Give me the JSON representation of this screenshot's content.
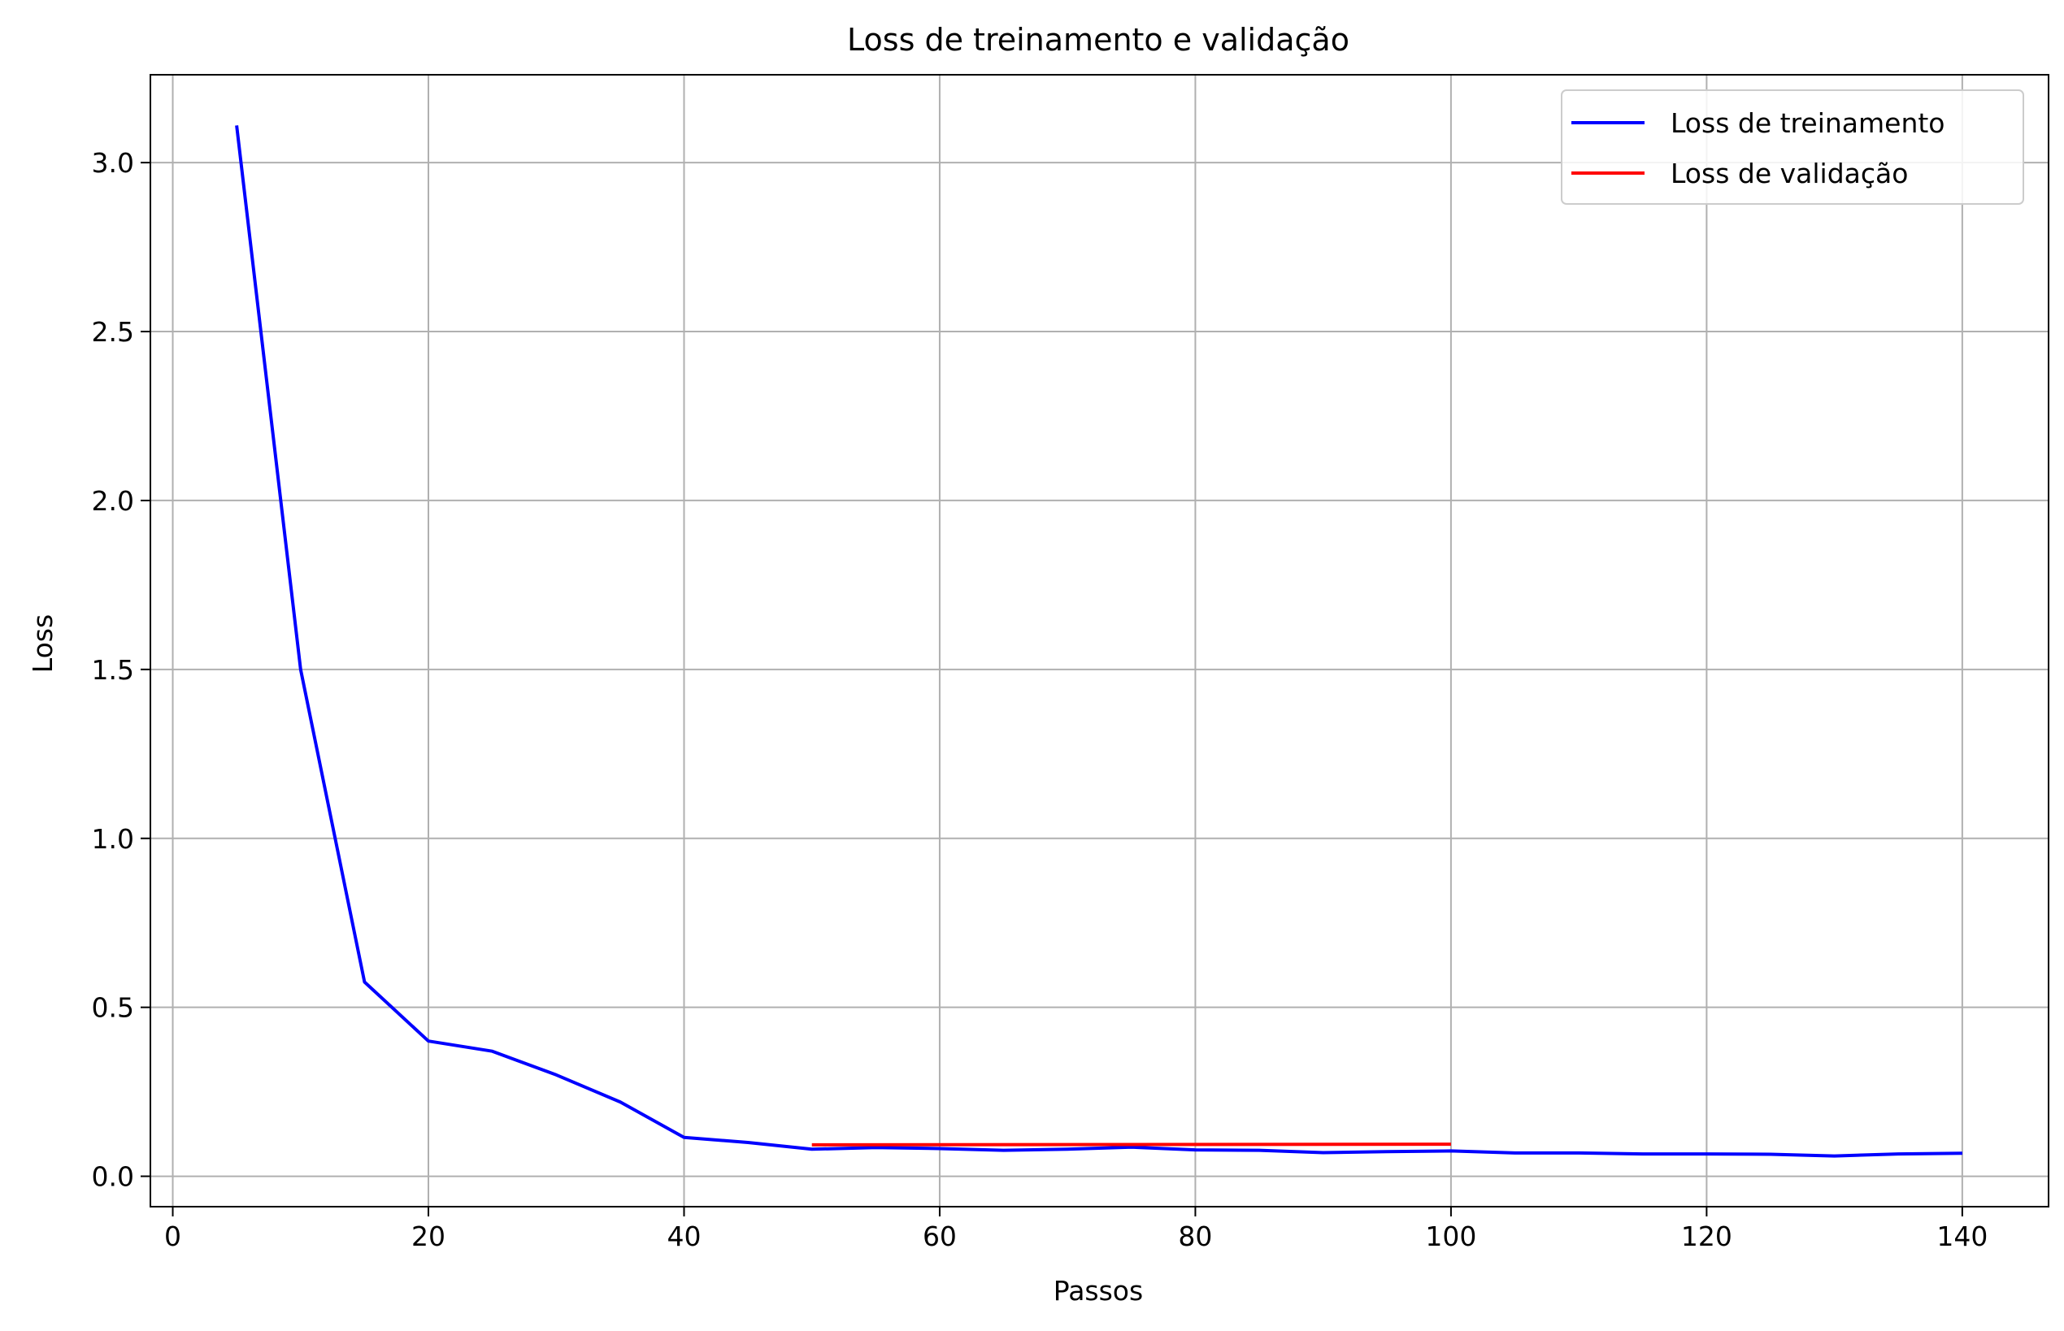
{
  "chart_data": {
    "type": "line",
    "title": "Loss de treinamento e validação",
    "xlabel": "Passos",
    "ylabel": "Loss",
    "xlim": [
      -1.75,
      146.75
    ],
    "ylim": [
      -0.09,
      3.26
    ],
    "xticks": [
      0,
      20,
      40,
      60,
      80,
      100,
      120,
      140
    ],
    "xtick_labels": [
      "0",
      "20",
      "40",
      "60",
      "80",
      "100",
      "120",
      "140"
    ],
    "yticks": [
      0.0,
      0.5,
      1.0,
      1.5,
      2.0,
      2.5,
      3.0
    ],
    "ytick_labels": [
      "0.0",
      "0.5",
      "1.0",
      "1.5",
      "2.0",
      "2.5",
      "3.0"
    ],
    "grid": true,
    "legend_position": "top-right",
    "series": [
      {
        "name": "Loss de treinamento",
        "color": "#0000ff",
        "x": [
          5,
          10,
          15,
          20,
          25,
          30,
          35,
          40,
          45,
          50,
          55,
          60,
          65,
          70,
          75,
          80,
          85,
          90,
          95,
          100,
          105,
          110,
          115,
          120,
          125,
          130,
          135,
          140
        ],
        "y": [
          3.11,
          1.5,
          0.575,
          0.4,
          0.37,
          0.3,
          0.22,
          0.115,
          0.1,
          0.08,
          0.085,
          0.082,
          0.077,
          0.08,
          0.086,
          0.078,
          0.077,
          0.07,
          0.073,
          0.075,
          0.069,
          0.069,
          0.066,
          0.066,
          0.065,
          0.06,
          0.066,
          0.068
        ]
      },
      {
        "name": "Loss de validação",
        "color": "#ff0000",
        "x": [
          50,
          100
        ],
        "y": [
          0.093,
          0.095
        ]
      }
    ]
  }
}
